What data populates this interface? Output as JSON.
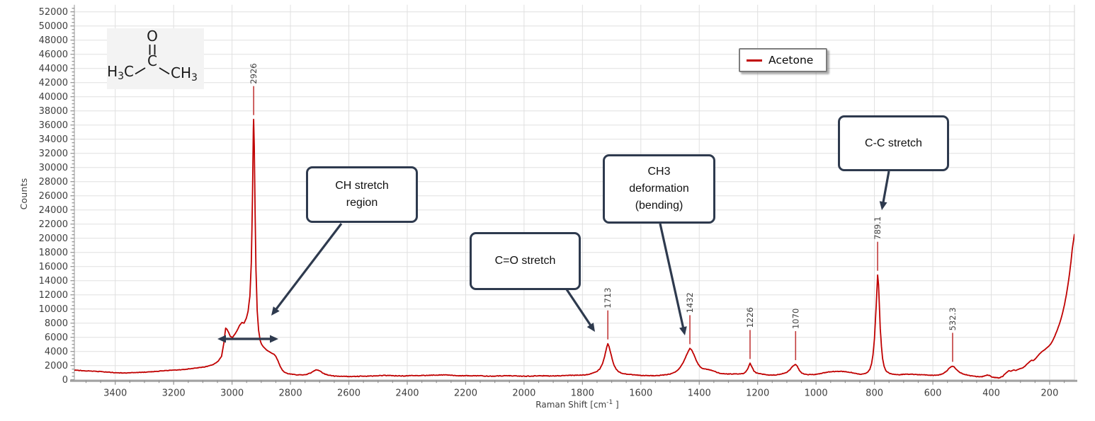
{
  "colors": {
    "curve": "#c00000",
    "peak_marker": "#c23b3b",
    "annotation_ink": "#2e3a4e",
    "grid": "#e0e0e0",
    "axis": "#a3a3a3",
    "tick": "#8f8f8f",
    "text": "#3f3f3f",
    "structure_bg": "#f3f3f3"
  },
  "legend": {
    "label": "Acetone",
    "position": "top-right"
  },
  "molecule": {
    "oxygen": "O",
    "carbon": "C",
    "left_h": "H",
    "left_sub": "3",
    "left_c": "C",
    "right_c": "CH",
    "right_sub": "3"
  },
  "axes": {
    "x": {
      "label_prefix": "Raman Shift [cm",
      "label_sup": "-1",
      "label_close": " ]",
      "ticks": [
        3400,
        3200,
        3000,
        2800,
        2600,
        2400,
        2200,
        2000,
        1800,
        1600,
        1400,
        1200,
        1000,
        800,
        600,
        400,
        200
      ]
    },
    "y": {
      "label": "Counts",
      "ticks": [
        0,
        2000,
        4000,
        6000,
        8000,
        10000,
        12000,
        14000,
        16000,
        18000,
        20000,
        22000,
        24000,
        26000,
        28000,
        30000,
        32000,
        34000,
        36000,
        38000,
        40000,
        42000,
        44000,
        46000,
        48000,
        50000,
        52000
      ]
    }
  },
  "annotations": {
    "boxes": [
      {
        "name": "ch-stretch-region",
        "lines": [
          "CH stretch",
          "region"
        ]
      },
      {
        "name": "c-o-stretch",
        "lines": [
          "C=O stretch"
        ]
      },
      {
        "name": "ch3-deformation",
        "lines": [
          "CH3",
          "deformation",
          "(bending)"
        ]
      },
      {
        "name": "c-c-stretch",
        "lines": [
          "C-C stretch"
        ]
      }
    ]
  },
  "chart_data": {
    "type": "line",
    "title": "",
    "xlabel": "Raman Shift [cm-1]",
    "ylabel": "Counts",
    "xlim": [
      3540,
      115
    ],
    "x_reversed": true,
    "ylim": [
      0,
      53000
    ],
    "x_major_step": 200,
    "x_minor_step": 50,
    "y_major_step": 2000,
    "y_minor_step": 500,
    "grid": true,
    "legend_position": "top-right",
    "peaks": [
      {
        "label": "2926",
        "wavenumber": 2926,
        "counts": 36800
      },
      {
        "label": "1713",
        "wavenumber": 1713,
        "counts": 5100
      },
      {
        "label": "1432",
        "wavenumber": 1432,
        "counts": 4430
      },
      {
        "label": "1226",
        "wavenumber": 1226,
        "counts": 2330
      },
      {
        "label": "1070",
        "wavenumber": 1070,
        "counts": 2170
      },
      {
        "label": "789.1",
        "wavenumber": 789.1,
        "counts": 14800
      },
      {
        "label": "532.3",
        "wavenumber": 532.3,
        "counts": 1930
      }
    ],
    "series": [
      {
        "name": "Acetone",
        "color": "#c00000",
        "points": [
          [
            3540,
            1350
          ],
          [
            3510,
            1300
          ],
          [
            3480,
            1220
          ],
          [
            3450,
            1130
          ],
          [
            3420,
            1060
          ],
          [
            3390,
            990
          ],
          [
            3360,
            950
          ],
          [
            3330,
            1000
          ],
          [
            3300,
            1080
          ],
          [
            3270,
            1160
          ],
          [
            3240,
            1240
          ],
          [
            3210,
            1330
          ],
          [
            3180,
            1420
          ],
          [
            3150,
            1520
          ],
          [
            3120,
            1650
          ],
          [
            3090,
            1850
          ],
          [
            3065,
            2150
          ],
          [
            3048,
            2600
          ],
          [
            3036,
            3300
          ],
          [
            3028,
            5200
          ],
          [
            3022,
            7300
          ],
          [
            3017,
            7100
          ],
          [
            3012,
            6700
          ],
          [
            3006,
            6150
          ],
          [
            2999,
            5950
          ],
          [
            2991,
            6400
          ],
          [
            2982,
            7000
          ],
          [
            2974,
            7700
          ],
          [
            2966,
            8100
          ],
          [
            2959,
            8000
          ],
          [
            2951,
            8700
          ],
          [
            2945,
            9700
          ],
          [
            2939,
            11800
          ],
          [
            2934,
            16500
          ],
          [
            2930,
            26000
          ],
          [
            2927,
            35500
          ],
          [
            2926,
            36800
          ],
          [
            2924,
            33000
          ],
          [
            2921,
            23500
          ],
          [
            2918,
            15500
          ],
          [
            2914,
            9800
          ],
          [
            2909,
            7000
          ],
          [
            2904,
            5600
          ],
          [
            2899,
            5000
          ],
          [
            2893,
            4650
          ],
          [
            2887,
            4400
          ],
          [
            2880,
            4150
          ],
          [
            2872,
            3950
          ],
          [
            2864,
            3750
          ],
          [
            2856,
            3600
          ],
          [
            2849,
            3250
          ],
          [
            2842,
            2600
          ],
          [
            2835,
            1900
          ],
          [
            2827,
            1300
          ],
          [
            2819,
            1000
          ],
          [
            2810,
            850
          ],
          [
            2800,
            780
          ],
          [
            2788,
            720
          ],
          [
            2774,
            680
          ],
          [
            2760,
            700
          ],
          [
            2746,
            760
          ],
          [
            2731,
            950
          ],
          [
            2719,
            1280
          ],
          [
            2710,
            1400
          ],
          [
            2701,
            1280
          ],
          [
            2692,
            1000
          ],
          [
            2682,
            790
          ],
          [
            2668,
            640
          ],
          [
            2650,
            540
          ],
          [
            2625,
            480
          ],
          [
            2598,
            450
          ],
          [
            2570,
            480
          ],
          [
            2542,
            520
          ],
          [
            2515,
            555
          ],
          [
            2488,
            575
          ],
          [
            2460,
            595
          ],
          [
            2432,
            575
          ],
          [
            2405,
            545
          ],
          [
            2378,
            560
          ],
          [
            2350,
            600
          ],
          [
            2322,
            640
          ],
          [
            2295,
            670
          ],
          [
            2268,
            655
          ],
          [
            2240,
            620
          ],
          [
            2212,
            585
          ],
          [
            2185,
            560
          ],
          [
            2158,
            545
          ],
          [
            2130,
            532
          ],
          [
            2102,
            538
          ],
          [
            2075,
            548
          ],
          [
            2048,
            540
          ],
          [
            2020,
            525
          ],
          [
            1992,
            515
          ],
          [
            1965,
            520
          ],
          [
            1938,
            535
          ],
          [
            1910,
            550
          ],
          [
            1882,
            568
          ],
          [
            1855,
            585
          ],
          [
            1828,
            615
          ],
          [
            1805,
            665
          ],
          [
            1785,
            745
          ],
          [
            1768,
            880
          ],
          [
            1752,
            1100
          ],
          [
            1740,
            1550
          ],
          [
            1731,
            2300
          ],
          [
            1724,
            3300
          ],
          [
            1717,
            4600
          ],
          [
            1713,
            5100
          ],
          [
            1709,
            4700
          ],
          [
            1704,
            3900
          ],
          [
            1698,
            2900
          ],
          [
            1692,
            2100
          ],
          [
            1685,
            1550
          ],
          [
            1677,
            1180
          ],
          [
            1668,
            980
          ],
          [
            1657,
            850
          ],
          [
            1644,
            760
          ],
          [
            1628,
            690
          ],
          [
            1610,
            640
          ],
          [
            1592,
            612
          ],
          [
            1574,
            596
          ],
          [
            1556,
            592
          ],
          [
            1538,
            605
          ],
          [
            1522,
            648
          ],
          [
            1507,
            730
          ],
          [
            1492,
            890
          ],
          [
            1478,
            1200
          ],
          [
            1466,
            1700
          ],
          [
            1455,
            2450
          ],
          [
            1445,
            3350
          ],
          [
            1437,
            4050
          ],
          [
            1432,
            4430
          ],
          [
            1426,
            4200
          ],
          [
            1419,
            3600
          ],
          [
            1411,
            2800
          ],
          [
            1403,
            2150
          ],
          [
            1396,
            1780
          ],
          [
            1388,
            1590
          ],
          [
            1379,
            1510
          ],
          [
            1370,
            1460
          ],
          [
            1361,
            1390
          ],
          [
            1351,
            1270
          ],
          [
            1341,
            1080
          ],
          [
            1330,
            920
          ],
          [
            1318,
            830
          ],
          [
            1305,
            795
          ],
          [
            1291,
            810
          ],
          [
            1277,
            825
          ],
          [
            1263,
            845
          ],
          [
            1250,
            900
          ],
          [
            1241,
            1080
          ],
          [
            1233,
            1650
          ],
          [
            1226,
            2330
          ],
          [
            1220,
            1850
          ],
          [
            1213,
            1250
          ],
          [
            1205,
            960
          ],
          [
            1195,
            840
          ],
          [
            1182,
            770
          ],
          [
            1168,
            710
          ],
          [
            1154,
            680
          ],
          [
            1140,
            700
          ],
          [
            1126,
            770
          ],
          [
            1112,
            880
          ],
          [
            1099,
            1060
          ],
          [
            1089,
            1420
          ],
          [
            1079,
            1950
          ],
          [
            1070,
            2170
          ],
          [
            1064,
            1880
          ],
          [
            1057,
            1320
          ],
          [
            1049,
            980
          ],
          [
            1040,
            810
          ],
          [
            1028,
            735
          ],
          [
            1014,
            720
          ],
          [
            1000,
            755
          ],
          [
            986,
            840
          ],
          [
            971,
            990
          ],
          [
            956,
            1110
          ],
          [
            941,
            1180
          ],
          [
            926,
            1200
          ],
          [
            911,
            1175
          ],
          [
            896,
            1105
          ],
          [
            881,
            1010
          ],
          [
            866,
            890
          ],
          [
            851,
            805
          ],
          [
            841,
            815
          ],
          [
            831,
            895
          ],
          [
            823,
            1090
          ],
          [
            816,
            1480
          ],
          [
            810,
            2250
          ],
          [
            805,
            3500
          ],
          [
            800,
            5800
          ],
          [
            796,
            8800
          ],
          [
            792,
            12200
          ],
          [
            789,
            14800
          ],
          [
            786,
            13400
          ],
          [
            783,
            10400
          ],
          [
            780,
            7200
          ],
          [
            776,
            4700
          ],
          [
            772,
            3000
          ],
          [
            767,
            1900
          ],
          [
            762,
            1350
          ],
          [
            755,
            1050
          ],
          [
            747,
            900
          ],
          [
            738,
            810
          ],
          [
            728,
            750
          ],
          [
            716,
            735
          ],
          [
            704,
            765
          ],
          [
            692,
            790
          ],
          [
            679,
            770
          ],
          [
            665,
            720
          ],
          [
            651,
            685
          ],
          [
            637,
            700
          ],
          [
            623,
            690
          ],
          [
            609,
            655
          ],
          [
            596,
            638
          ],
          [
            583,
            655
          ],
          [
            571,
            750
          ],
          [
            561,
            950
          ],
          [
            552,
            1250
          ],
          [
            544,
            1600
          ],
          [
            537,
            1870
          ],
          [
            532,
            1930
          ],
          [
            527,
            1830
          ],
          [
            521,
            1550
          ],
          [
            514,
            1250
          ],
          [
            507,
            1030
          ],
          [
            499,
            880
          ],
          [
            490,
            760
          ],
          [
            480,
            640
          ],
          [
            469,
            545
          ],
          [
            458,
            475
          ],
          [
            447,
            425
          ],
          [
            439,
            405
          ],
          [
            431,
            445
          ],
          [
            422,
            565
          ],
          [
            414,
            660
          ],
          [
            407,
            615
          ],
          [
            400,
            480
          ],
          [
            392,
            375
          ],
          [
            384,
            300
          ],
          [
            376,
            280
          ],
          [
            368,
            330
          ],
          [
            360,
            510
          ],
          [
            352,
            810
          ],
          [
            345,
            1110
          ],
          [
            339,
            1310
          ],
          [
            333,
            1160
          ],
          [
            327,
            1300
          ],
          [
            321,
            1410
          ],
          [
            315,
            1310
          ],
          [
            309,
            1450
          ],
          [
            303,
            1560
          ],
          [
            297,
            1610
          ],
          [
            291,
            1710
          ],
          [
            285,
            1910
          ],
          [
            279,
            2160
          ],
          [
            273,
            2410
          ],
          [
            267,
            2610
          ],
          [
            261,
            2760
          ],
          [
            256,
            2700
          ],
          [
            251,
            2860
          ],
          [
            245,
            3110
          ],
          [
            239,
            3420
          ],
          [
            233,
            3720
          ],
          [
            227,
            3940
          ],
          [
            221,
            4120
          ],
          [
            215,
            4320
          ],
          [
            209,
            4530
          ],
          [
            203,
            4740
          ],
          [
            197,
            5020
          ],
          [
            191,
            5420
          ],
          [
            185,
            5920
          ],
          [
            179,
            6520
          ],
          [
            173,
            7140
          ],
          [
            167,
            7830
          ],
          [
            161,
            8620
          ],
          [
            155,
            9540
          ],
          [
            149,
            10640
          ],
          [
            143,
            11960
          ],
          [
            137,
            13480
          ],
          [
            131,
            15280
          ],
          [
            127,
            16680
          ],
          [
            123,
            18280
          ],
          [
            119,
            19500
          ],
          [
            115,
            20600
          ]
        ]
      }
    ]
  }
}
